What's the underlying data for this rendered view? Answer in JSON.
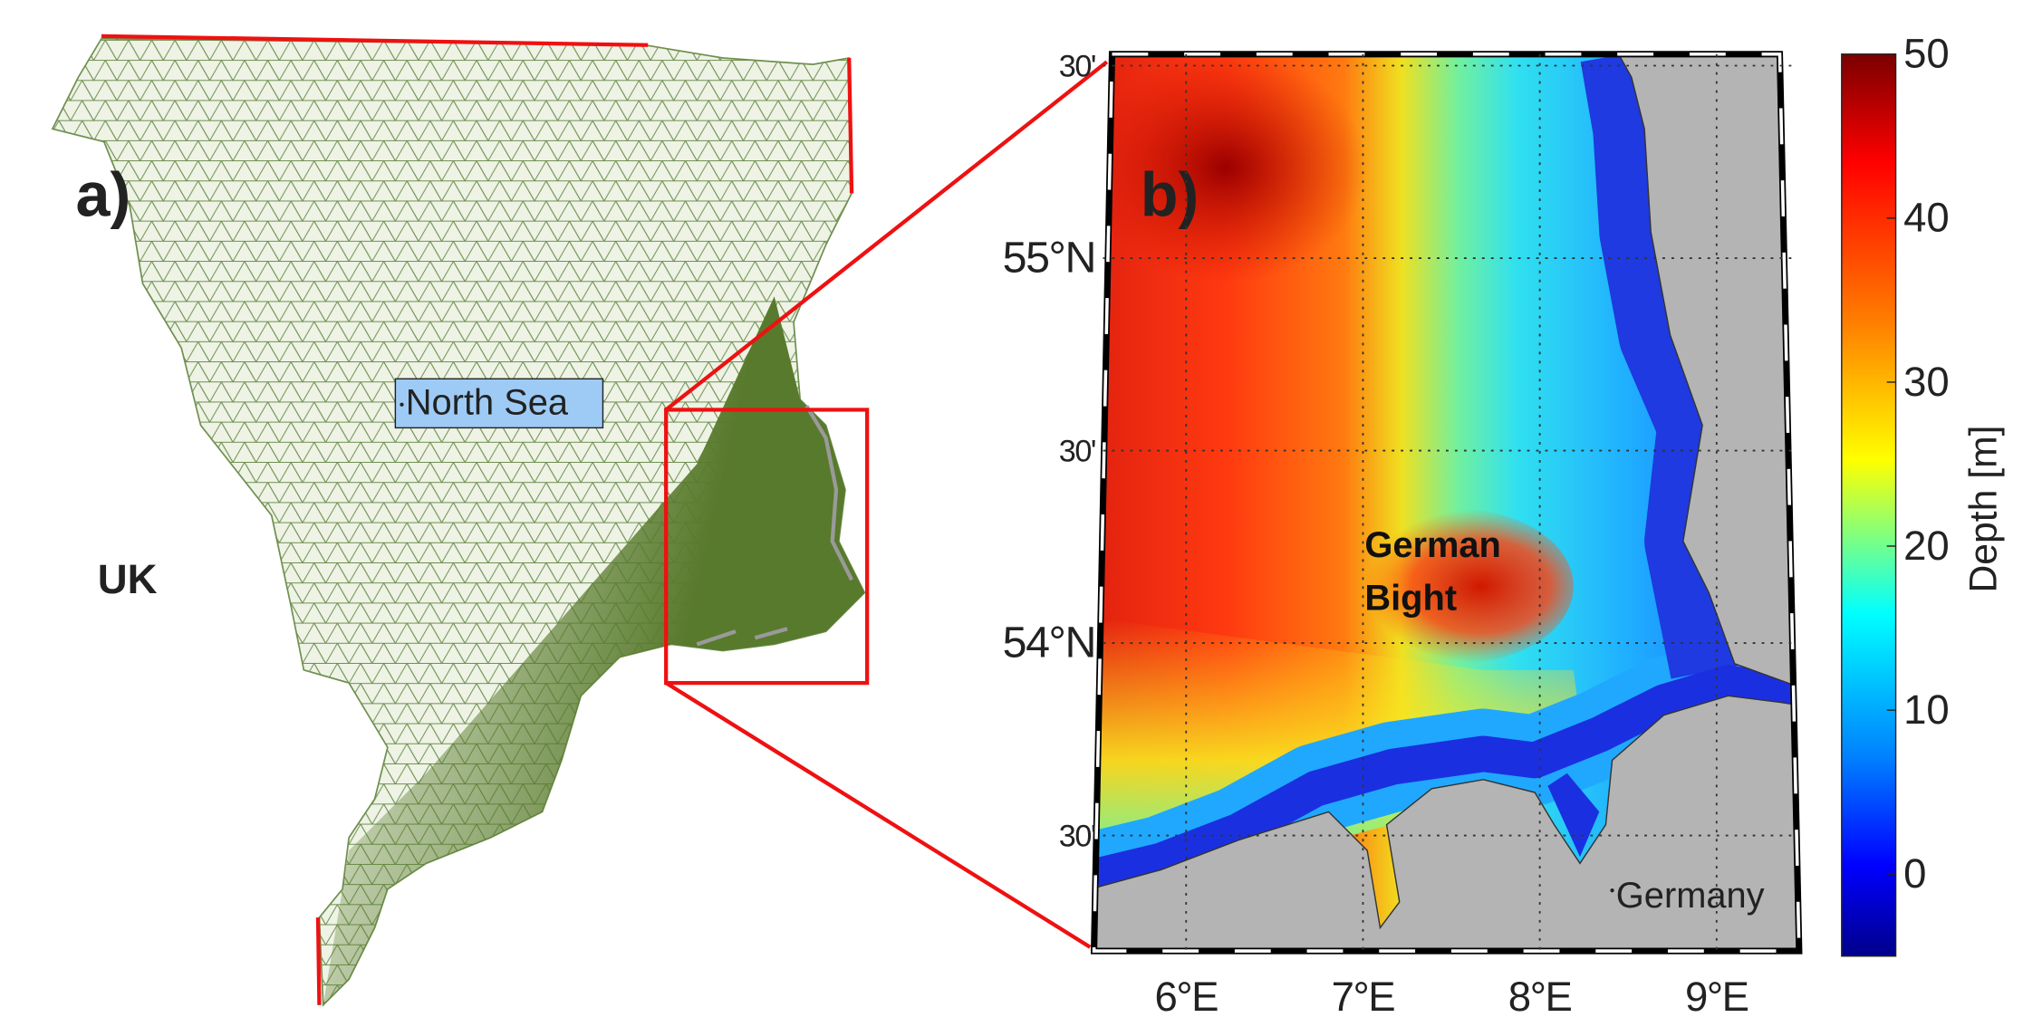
{
  "panel_a": {
    "label": "a)",
    "uk": "UK",
    "north_sea": "North Sea"
  },
  "panel_b": {
    "label": "b)",
    "german_bight": [
      "German",
      "Bight"
    ],
    "germany": "Germany",
    "xlim": [
      5.53,
      9.43
    ],
    "ylim": [
      53.2,
      55.53
    ],
    "lat_ticks": [
      {
        "value": 55.5,
        "label": "30'"
      },
      {
        "value": 55,
        "label": "55°N"
      },
      {
        "value": 54.5,
        "label": "30'"
      },
      {
        "value": 54,
        "label": "54°N"
      },
      {
        "value": 53.5,
        "label": "30'"
      }
    ],
    "lon_ticks": [
      {
        "value": 6,
        "label": "6°E"
      },
      {
        "value": 7,
        "label": "7°E"
      },
      {
        "value": 8,
        "label": "8°E"
      },
      {
        "value": 9,
        "label": "9°E"
      }
    ]
  },
  "colorbar": {
    "label": "Depth [m]",
    "lim": [
      -5,
      50
    ],
    "ticks": [
      0,
      10,
      20,
      30,
      40,
      50
    ]
  }
}
